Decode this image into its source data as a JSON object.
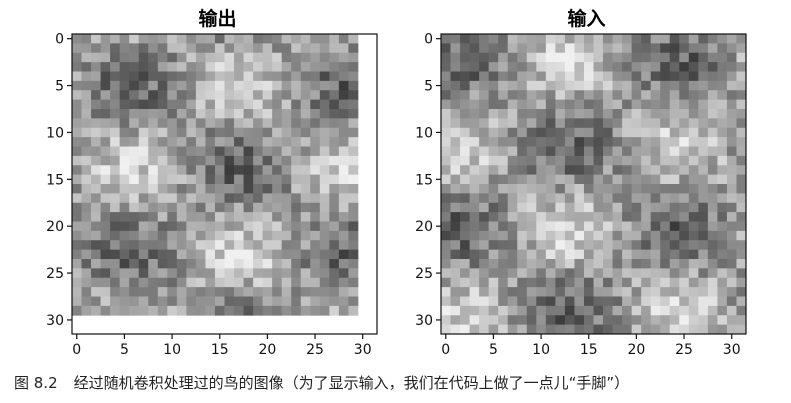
{
  "panels": [
    {
      "id": "output",
      "title": "输出",
      "axes": {
        "x_ticks": [
          0,
          5,
          10,
          15,
          20,
          25,
          30
        ],
        "y_ticks": [
          0,
          5,
          10,
          15,
          20,
          25,
          30
        ],
        "xlim": [
          -0.5,
          31.5
        ],
        "ylim": [
          31.5,
          -0.5
        ]
      },
      "image_size": [
        30,
        30
      ],
      "colormap": "gray"
    },
    {
      "id": "input",
      "title": "输入",
      "axes": {
        "x_ticks": [
          0,
          5,
          10,
          15,
          20,
          25,
          30
        ],
        "y_ticks": [
          0,
          5,
          10,
          15,
          20,
          25,
          30
        ],
        "xlim": [
          -0.5,
          31.5
        ],
        "ylim": [
          31.5,
          -0.5
        ]
      },
      "image_size": [
        32,
        32
      ],
      "colormap": "gray"
    }
  ],
  "caption": {
    "figure_label": "图 8.2",
    "text": "经过随机卷积处理过的鸟的图像（为了显示输入，我们在代码上做了一点儿“手脚”）"
  }
}
